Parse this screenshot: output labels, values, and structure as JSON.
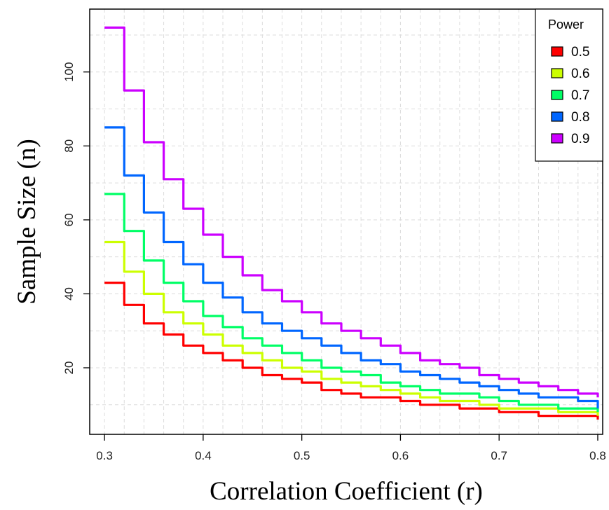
{
  "chart_data": {
    "type": "line",
    "xlabel": "Correlation Coefficient (r)",
    "ylabel": "Sample Size (n)",
    "xlim": [
      0.285,
      0.805
    ],
    "ylim": [
      2,
      117
    ],
    "x_ticks": [
      "0.3",
      "0.4",
      "0.5",
      "0.6",
      "0.7",
      "0.8"
    ],
    "y_ticks": [
      "20",
      "40",
      "60",
      "80",
      "100"
    ],
    "grid": true,
    "legend": {
      "title": "Power",
      "placement": "top-right"
    },
    "x": [
      0.3,
      0.32,
      0.34,
      0.36,
      0.38,
      0.4,
      0.42,
      0.44,
      0.46,
      0.48,
      0.5,
      0.52,
      0.54,
      0.56,
      0.58,
      0.6,
      0.62,
      0.64,
      0.66,
      0.68,
      0.7,
      0.72,
      0.74,
      0.76,
      0.78,
      0.8
    ],
    "series": [
      {
        "name": "0.5",
        "color": "#ff0000",
        "values": [
          43,
          37,
          32,
          29,
          26,
          24,
          22,
          20,
          18,
          17,
          16,
          14,
          13,
          12,
          12,
          11,
          10,
          10,
          9,
          9,
          8,
          8,
          7,
          7,
          7,
          6
        ]
      },
      {
        "name": "0.6",
        "color": "#ccff00",
        "values": [
          54,
          46,
          40,
          35,
          32,
          29,
          26,
          24,
          22,
          20,
          19,
          17,
          16,
          15,
          14,
          13,
          12,
          11,
          11,
          10,
          9,
          9,
          9,
          8,
          8,
          7
        ]
      },
      {
        "name": "0.7",
        "color": "#00ff66",
        "values": [
          67,
          57,
          49,
          43,
          38,
          34,
          31,
          28,
          26,
          24,
          22,
          20,
          19,
          18,
          16,
          15,
          14,
          13,
          13,
          12,
          11,
          10,
          10,
          9,
          9,
          8
        ]
      },
      {
        "name": "0.8",
        "color": "#0066ff",
        "values": [
          85,
          72,
          62,
          54,
          48,
          43,
          39,
          35,
          32,
          30,
          28,
          26,
          24,
          22,
          21,
          19,
          18,
          17,
          16,
          15,
          14,
          13,
          12,
          12,
          11,
          9
        ]
      },
      {
        "name": "0.9",
        "color": "#cc00ff",
        "values": [
          112,
          95,
          81,
          71,
          63,
          56,
          50,
          45,
          41,
          38,
          35,
          32,
          30,
          28,
          26,
          24,
          22,
          21,
          20,
          18,
          17,
          16,
          15,
          14,
          13,
          12
        ]
      }
    ]
  }
}
